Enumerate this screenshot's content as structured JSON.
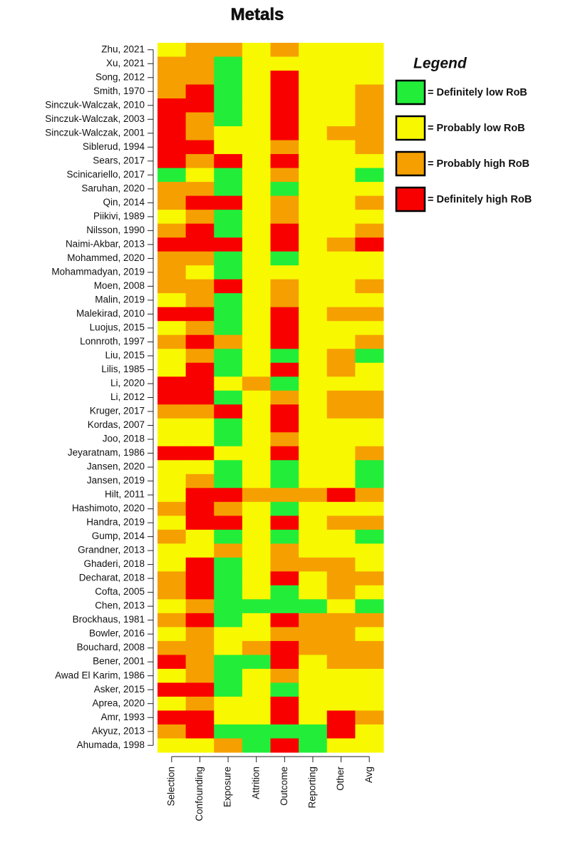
{
  "chart_data": {
    "type": "heatmap",
    "title": "Metals",
    "legend_title": "Legend",
    "legend": [
      {
        "label": "= Definitely low RoB",
        "color": "#22ee3a"
      },
      {
        "label": "= Probably low RoB",
        "color": "#f8f800"
      },
      {
        "label": "= Probably high RoB",
        "color": "#f5a000"
      },
      {
        "label": "= Definitely high RoB",
        "color": "#f80000"
      }
    ],
    "columns": [
      "Selection",
      "Confounding",
      "Exposure",
      "Attrition",
      "Outcome",
      "Reporting",
      "Other",
      "Avg"
    ],
    "rows": [
      "Zhu, 2021",
      "Xu, 2021",
      "Song, 2012",
      "Smith, 1970",
      "Sinczuk-Walczak, 2010",
      "Sinczuk-Walczak, 2003",
      "Sinczuk-Walczak, 2001",
      "Siblerud, 1994",
      "Sears, 2017",
      "Scinicariello, 2017",
      "Saruhan, 2020",
      "Qin, 2014",
      "Piikivi, 1989",
      "Nilsson, 1990",
      "Naimi-Akbar, 2013",
      "Mohammed, 2020",
      "Mohammadyan, 2019",
      "Moen, 2008",
      "Malin, 2019",
      "Malekirad, 2010",
      "Luojus, 2015",
      "Lonnroth, 1997",
      "Liu, 2015",
      "Lilis, 1985",
      "Li, 2020",
      "Li, 2012",
      "Kruger, 2017",
      "Kordas, 2007",
      "Joo, 2018",
      "Jeyaratnam, 1986",
      "Jansen, 2020",
      "Jansen, 2019",
      "Hilt, 2011",
      "Hashimoto, 2020",
      "Handra, 2019",
      "Gump, 2014",
      "Grandner, 2013",
      "Ghaderi, 2018",
      "Decharat, 2018",
      "Cofta, 2005",
      "Chen, 2013",
      "Brockhaus, 1981",
      "Bowler, 2016",
      "Bouchard, 2008",
      "Bener, 2001",
      "Awad El Karim, 1986",
      "Asker, 2015",
      "Aprea, 2020",
      "Amr, 1993",
      "Akyuz, 2013",
      "Ahumada, 1998"
    ],
    "values": [
      [
        2,
        3,
        3,
        2,
        3,
        2,
        2,
        2
      ],
      [
        3,
        3,
        1,
        2,
        2,
        2,
        2,
        2
      ],
      [
        3,
        3,
        1,
        2,
        4,
        2,
        2,
        2
      ],
      [
        3,
        4,
        1,
        2,
        4,
        2,
        2,
        3
      ],
      [
        4,
        4,
        1,
        2,
        4,
        2,
        2,
        3
      ],
      [
        4,
        3,
        1,
        2,
        4,
        2,
        2,
        3
      ],
      [
        4,
        3,
        2,
        2,
        4,
        2,
        3,
        3
      ],
      [
        4,
        4,
        2,
        2,
        3,
        2,
        2,
        3
      ],
      [
        4,
        3,
        4,
        2,
        4,
        2,
        2,
        2
      ],
      [
        1,
        2,
        1,
        2,
        3,
        2,
        2,
        1
      ],
      [
        3,
        3,
        1,
        2,
        1,
        2,
        2,
        2
      ],
      [
        3,
        4,
        4,
        2,
        3,
        2,
        2,
        3
      ],
      [
        2,
        3,
        1,
        2,
        3,
        2,
        2,
        2
      ],
      [
        3,
        4,
        1,
        2,
        4,
        2,
        2,
        3
      ],
      [
        4,
        4,
        4,
        2,
        4,
        2,
        3,
        4
      ],
      [
        3,
        3,
        1,
        2,
        1,
        2,
        2,
        2
      ],
      [
        3,
        2,
        1,
        2,
        2,
        2,
        2,
        2
      ],
      [
        3,
        3,
        4,
        2,
        3,
        2,
        2,
        3
      ],
      [
        2,
        3,
        1,
        2,
        3,
        2,
        2,
        2
      ],
      [
        4,
        4,
        1,
        2,
        4,
        2,
        3,
        3
      ],
      [
        2,
        3,
        1,
        2,
        4,
        2,
        2,
        2
      ],
      [
        3,
        4,
        3,
        2,
        4,
        2,
        2,
        3
      ],
      [
        2,
        3,
        1,
        2,
        1,
        2,
        3,
        1
      ],
      [
        2,
        4,
        1,
        2,
        4,
        2,
        3,
        2
      ],
      [
        4,
        4,
        2,
        3,
        1,
        2,
        2,
        2
      ],
      [
        4,
        4,
        1,
        2,
        3,
        2,
        3,
        3
      ],
      [
        3,
        3,
        4,
        2,
        4,
        2,
        3,
        3
      ],
      [
        2,
        2,
        1,
        2,
        4,
        2,
        2,
        2
      ],
      [
        2,
        2,
        1,
        2,
        3,
        2,
        2,
        2
      ],
      [
        4,
        4,
        2,
        2,
        4,
        2,
        2,
        3
      ],
      [
        2,
        2,
        1,
        2,
        1,
        2,
        2,
        1
      ],
      [
        2,
        3,
        1,
        2,
        1,
        2,
        2,
        1
      ],
      [
        2,
        4,
        4,
        3,
        3,
        3,
        4,
        3
      ],
      [
        3,
        4,
        3,
        2,
        1,
        2,
        2,
        2
      ],
      [
        2,
        4,
        4,
        2,
        4,
        2,
        3,
        3
      ],
      [
        3,
        2,
        1,
        2,
        1,
        2,
        2,
        1
      ],
      [
        2,
        2,
        3,
        2,
        3,
        2,
        2,
        2
      ],
      [
        2,
        4,
        1,
        2,
        3,
        3,
        3,
        2
      ],
      [
        3,
        4,
        1,
        2,
        4,
        2,
        3,
        3
      ],
      [
        3,
        4,
        1,
        2,
        1,
        2,
        3,
        2
      ],
      [
        2,
        3,
        1,
        1,
        1,
        1,
        2,
        1
      ],
      [
        3,
        4,
        1,
        2,
        4,
        3,
        3,
        3
      ],
      [
        2,
        3,
        2,
        2,
        3,
        3,
        3,
        2
      ],
      [
        3,
        3,
        2,
        3,
        4,
        3,
        3,
        3
      ],
      [
        4,
        3,
        1,
        1,
        4,
        2,
        3,
        3
      ],
      [
        2,
        3,
        1,
        2,
        3,
        2,
        2,
        2
      ],
      [
        4,
        4,
        1,
        2,
        1,
        2,
        2,
        2
      ],
      [
        2,
        3,
        2,
        2,
        4,
        2,
        2,
        2
      ],
      [
        4,
        4,
        2,
        2,
        4,
        2,
        4,
        3
      ],
      [
        3,
        4,
        1,
        1,
        1,
        1,
        4,
        2
      ],
      [
        2,
        2,
        3,
        1,
        4,
        1,
        2,
        2
      ]
    ]
  }
}
